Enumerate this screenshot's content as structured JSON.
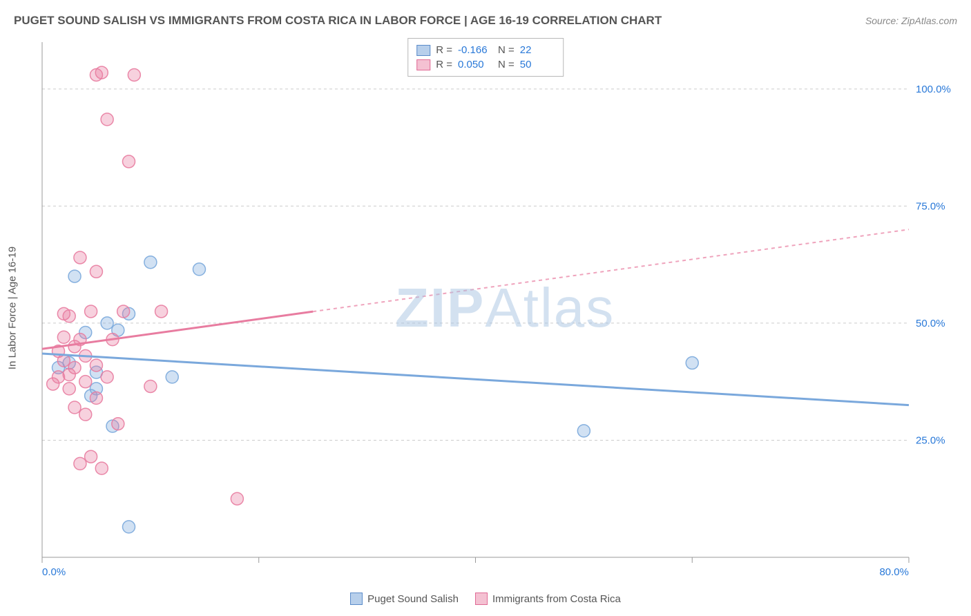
{
  "title": "PUGET SOUND SALISH VS IMMIGRANTS FROM COSTA RICA IN LABOR FORCE | AGE 16-19 CORRELATION CHART",
  "source": "Source: ZipAtlas.com",
  "y_axis_label": "In Labor Force | Age 16-19",
  "watermark": "ZIPAtlas",
  "chart": {
    "type": "scatter",
    "xlim": [
      0,
      80
    ],
    "ylim": [
      0,
      110
    ],
    "x_ticks": [
      0,
      20,
      40,
      60,
      80
    ],
    "x_tick_labels": [
      "0.0%",
      "",
      "",
      "",
      "80.0%"
    ],
    "y_ticks": [
      25,
      50,
      75,
      100
    ],
    "y_tick_labels": [
      "25.0%",
      "50.0%",
      "75.0%",
      "100.0%"
    ],
    "grid_color": "#cccccc",
    "axis_color": "#999999",
    "tick_label_color": "#2878d8",
    "tick_label_fontsize": 15,
    "background_color": "#ffffff",
    "series": [
      {
        "name": "Puget Sound Salish",
        "color": "#7aa8dc",
        "fill": "#7aa8dc",
        "fill_opacity": 0.35,
        "stroke_opacity": 0.9,
        "marker_radius": 9,
        "R": "-0.166",
        "N": "22",
        "trend": {
          "x1": 0,
          "y1": 43.5,
          "x2": 80,
          "y2": 32.5,
          "solid_until": 80
        },
        "points": [
          [
            1.5,
            40.5
          ],
          [
            2.5,
            41.5
          ],
          [
            3.0,
            60.0
          ],
          [
            4.0,
            48.0
          ],
          [
            4.5,
            34.5
          ],
          [
            5.0,
            39.5
          ],
          [
            5.0,
            36.0
          ],
          [
            6.0,
            50.0
          ],
          [
            6.5,
            28.0
          ],
          [
            7.0,
            48.5
          ],
          [
            8.0,
            52.0
          ],
          [
            8.0,
            6.5
          ],
          [
            10.0,
            63.0
          ],
          [
            12.0,
            38.5
          ],
          [
            14.5,
            61.5
          ],
          [
            50.0,
            27.0
          ],
          [
            60.0,
            41.5
          ]
        ]
      },
      {
        "name": "Immigrants from Costa Rica",
        "color": "#e87ca0",
        "fill": "#e87ca0",
        "fill_opacity": 0.35,
        "stroke_opacity": 0.9,
        "marker_radius": 9,
        "R": "0.050",
        "N": "50",
        "trend": {
          "x1": 0,
          "y1": 44.5,
          "x2": 80,
          "y2": 70.0,
          "solid_until": 25
        },
        "points": [
          [
            1.0,
            37.0
          ],
          [
            1.5,
            38.5
          ],
          [
            1.5,
            44.0
          ],
          [
            2.0,
            47.0
          ],
          [
            2.0,
            52.0
          ],
          [
            2.0,
            42.0
          ],
          [
            2.5,
            39.0
          ],
          [
            2.5,
            51.5
          ],
          [
            2.5,
            36.0
          ],
          [
            3.0,
            45.0
          ],
          [
            3.0,
            40.5
          ],
          [
            3.0,
            32.0
          ],
          [
            3.5,
            46.5
          ],
          [
            3.5,
            64.0
          ],
          [
            3.5,
            20.0
          ],
          [
            4.0,
            43.0
          ],
          [
            4.0,
            37.5
          ],
          [
            4.0,
            30.5
          ],
          [
            4.5,
            52.5
          ],
          [
            4.5,
            21.5
          ],
          [
            5.0,
            61.0
          ],
          [
            5.0,
            41.0
          ],
          [
            5.0,
            103.0
          ],
          [
            5.0,
            34.0
          ],
          [
            5.5,
            103.5
          ],
          [
            5.5,
            19.0
          ],
          [
            6.0,
            38.5
          ],
          [
            6.0,
            93.5
          ],
          [
            6.5,
            46.5
          ],
          [
            7.0,
            28.5
          ],
          [
            7.5,
            52.5
          ],
          [
            8.0,
            84.5
          ],
          [
            8.5,
            103.0
          ],
          [
            10.0,
            36.5
          ],
          [
            11.0,
            52.5
          ],
          [
            18.0,
            12.5
          ]
        ]
      }
    ]
  },
  "legend_bottom": [
    {
      "label": "Puget Sound Salish",
      "fill": "#b7cfeb",
      "stroke": "#5a8bc9"
    },
    {
      "label": "Immigrants from Costa Rica",
      "fill": "#f4c1d2",
      "stroke": "#e06a95"
    }
  ],
  "legend_box": [
    {
      "fill": "#b7cfeb",
      "stroke": "#5a8bc9",
      "R": "-0.166",
      "N": "22"
    },
    {
      "fill": "#f4c1d2",
      "stroke": "#e06a95",
      "R": "0.050",
      "N": "50"
    }
  ]
}
